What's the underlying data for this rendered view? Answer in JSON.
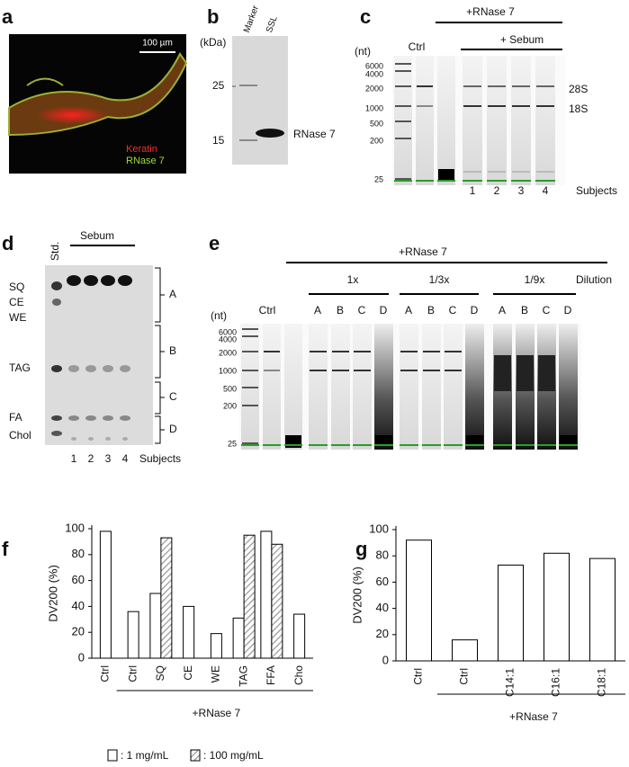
{
  "panel_labels": [
    "a",
    "b",
    "c",
    "d",
    "e",
    "f",
    "g"
  ],
  "panel_a": {
    "scale_bar": "100 µm",
    "stain_labels": [
      "Keratin",
      "RNase 7"
    ]
  },
  "panel_b": {
    "unit": "(kDa)",
    "lanes": [
      "Marker",
      "SSL"
    ],
    "markers": [
      "25",
      "15"
    ],
    "band_label": "RNase 7"
  },
  "panel_c": {
    "treatment": "+RNase 7",
    "control": "Ctrl",
    "sebum": "+ Sebum",
    "unit": "(nt)",
    "markers": [
      "6000",
      "4000",
      "2000",
      "1000",
      "500",
      "200",
      "25"
    ],
    "bands": [
      "28S",
      "18S"
    ],
    "subjects": [
      "1",
      "2",
      "3",
      "4"
    ],
    "subjects_label": "Subjects"
  },
  "panel_d": {
    "standard": "Std.",
    "sebum": "Sebum",
    "lipids": [
      "SQ",
      "CE",
      "WE",
      "TAG",
      "FA",
      "Chol"
    ],
    "fractions": [
      "A",
      "B",
      "C",
      "D"
    ],
    "subjects": [
      "1",
      "2",
      "3",
      "4"
    ],
    "subjects_label": "Subjects"
  },
  "panel_e": {
    "treatment": "+RNase 7",
    "control": "Ctrl",
    "dilutions": [
      "1x",
      "1/3x",
      "1/9x"
    ],
    "dilution_label": "Dilution",
    "fractions": [
      "A",
      "B",
      "C",
      "D"
    ],
    "unit": "(nt)",
    "markers": [
      "6000",
      "4000",
      "2000",
      "1000",
      "500",
      "200",
      "25"
    ]
  },
  "chart_data": [
    {
      "type": "bar",
      "y_label": "DV200 (%)",
      "group_label": "+RNase 7",
      "categories": [
        "Ctrl",
        "Ctrl",
        "SQ",
        "CE",
        "WE",
        "TAG",
        "FFA",
        "Cho"
      ],
      "series": [
        {
          "name": ": 1 mg/mL",
          "color": "#ffffff",
          "values": [
            98,
            36,
            50,
            40,
            19,
            31,
            98,
            34
          ]
        },
        {
          "name": ": 100 mg/mL",
          "color": "#999999",
          "pattern": "hatch",
          "values": [
            null,
            null,
            93,
            null,
            null,
            95,
            88,
            null
          ]
        }
      ],
      "ylim": [
        0,
        100
      ],
      "yticks": [
        0,
        20,
        40,
        60,
        80,
        100
      ]
    },
    {
      "type": "bar",
      "y_label": "DV200 (%)",
      "group_label": "+RNase 7",
      "categories": [
        "Ctrl",
        "Ctrl",
        "C14:1",
        "C16:1",
        "C18:1"
      ],
      "values": [
        92,
        16,
        73,
        82,
        78
      ],
      "color": "#ffffff",
      "ylim": [
        0,
        100
      ],
      "yticks": [
        0,
        20,
        40,
        60,
        80,
        100
      ]
    }
  ]
}
